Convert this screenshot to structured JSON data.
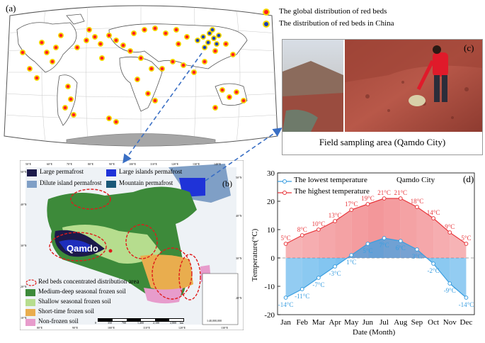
{
  "panel_a": {
    "label": "(a)",
    "legend": [
      {
        "text": "The global distribution of red beds",
        "color": "#ff1f1f"
      },
      {
        "text": "The distribution of red beds in China",
        "color": "#1b3fb5"
      }
    ],
    "colors": {
      "land": "#ffffff",
      "ocean": "#ffffff",
      "dot_ring": "#f5d800",
      "antarctica": "#a6a6a6"
    }
  },
  "panel_b": {
    "label": "(b)",
    "city": "Qamdo",
    "top_legend": [
      {
        "text": "Large permafrost",
        "color": "#1c1a4a"
      },
      {
        "text": "Large islands permafrost",
        "color": "#1f33d8"
      },
      {
        "text": "Dilute island permafrost",
        "color": "#7f9fc6"
      },
      {
        "text": "Mountain permafrost",
        "color": "#1a5878"
      }
    ],
    "bottom_legend": [
      {
        "text": "Red beds concentrated distribution area",
        "type": "ellipse"
      },
      {
        "text": "Medium-deep seasonal frozen soil",
        "color": "#3d8a3a"
      },
      {
        "text": "Shallow seasonal frozen soil",
        "color": "#b6dd8e"
      },
      {
        "text": "Short-time frozen soil",
        "color": "#e9ad4e"
      },
      {
        "text": "Non-frozen soil",
        "color": "#e79ccc"
      }
    ],
    "lon_labels": [
      "50°E",
      "60°E",
      "70°E",
      "80°E",
      "90°E",
      "100°E",
      "110°E",
      "120°E",
      "130°E",
      "140°E"
    ],
    "lon_labels_bottom": [
      "80°E",
      "90°E",
      "100°E",
      "110°E",
      "120°E",
      "130°E"
    ],
    "lat_labels_left": [
      "50°N",
      "40°N",
      "30°N",
      "20°N",
      "10°N"
    ],
    "lat_labels_right": [
      "50°N",
      "40°N",
      "30°N",
      "20°N"
    ],
    "scale_text": "1:40,000,000",
    "scale_ticks": [
      "0",
      "350",
      "700",
      "1,400",
      "2,100",
      "2,800"
    ],
    "scale_unit": "km"
  },
  "panel_c": {
    "label": "(c)",
    "caption": "Field sampling area (Qamdo City)"
  },
  "panel_d": {
    "label": "(d)",
    "city_label": "Qamdo City",
    "chart_data": {
      "type": "line",
      "categories": [
        "Jan",
        "Feb",
        "Mar",
        "Apr",
        "May",
        "Jun",
        "Jul",
        "Aug",
        "Sep",
        "Oct",
        "Nov",
        "Dec"
      ],
      "series": [
        {
          "name": "The lowest temperature",
          "color": "#3a9ee0",
          "values": [
            -14,
            -11,
            -7,
            -3,
            1,
            5,
            7,
            6,
            3,
            -2,
            -9,
            -14
          ],
          "labels": [
            "-14°C",
            "-11°C",
            "-7°C",
            "-3°C",
            "1°C",
            "5°C",
            "7°C",
            "6°C",
            "3°C",
            "-2°C",
            "-9°C",
            "-14°C"
          ]
        },
        {
          "name": "The highest temperature",
          "color": "#e8373c",
          "values": [
            5,
            8,
            10,
            13,
            17,
            19,
            21,
            21,
            18,
            14,
            9,
            5
          ],
          "labels": [
            "5°C",
            "8°C",
            "10°C",
            "13°C",
            "17°C",
            "19°C",
            "21°C",
            "21°C",
            "18°C",
            "14°C",
            "9°C",
            "5°C"
          ]
        }
      ],
      "xlabel": "Date (Month)",
      "ylabel": "Temperature(°C)",
      "ylim": [
        -20,
        30
      ],
      "yticks": [
        "-20",
        "-10",
        "0",
        "10",
        "20",
        "30"
      ],
      "zero_line": "dashed",
      "legend_position": "top-left"
    }
  }
}
